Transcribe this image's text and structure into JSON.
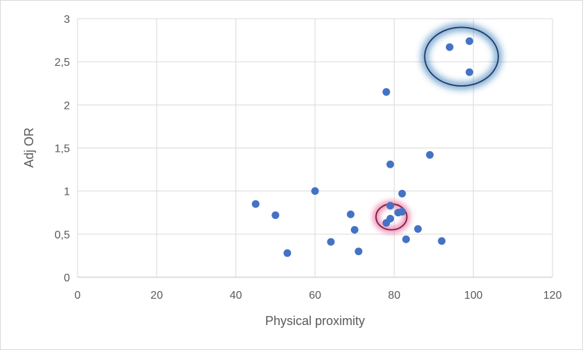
{
  "chart_data": {
    "type": "scatter",
    "title": "",
    "xlabel": "Physical proximity",
    "ylabel": "Adj OR",
    "xlim": [
      0,
      120
    ],
    "ylim": [
      0,
      3
    ],
    "x_ticks": [
      0,
      20,
      40,
      60,
      80,
      100,
      120
    ],
    "x_tick_labels": [
      "0",
      "20",
      "40",
      "60",
      "80",
      "100",
      "120"
    ],
    "y_ticks": [
      0,
      0.5,
      1,
      1.5,
      2,
      2.5,
      3
    ],
    "y_tick_labels": [
      "0",
      "0,5",
      "1",
      "1,5",
      "2",
      "2,5",
      "3"
    ],
    "grid": true,
    "legend": "none",
    "marker_color": "#4472C4",
    "points": [
      {
        "x": 45,
        "y": 0.85
      },
      {
        "x": 50,
        "y": 0.72
      },
      {
        "x": 53,
        "y": 0.28
      },
      {
        "x": 60,
        "y": 1.0
      },
      {
        "x": 64,
        "y": 0.41
      },
      {
        "x": 69,
        "y": 0.73
      },
      {
        "x": 70,
        "y": 0.55
      },
      {
        "x": 71,
        "y": 0.3
      },
      {
        "x": 78,
        "y": 2.15
      },
      {
        "x": 78,
        "y": 0.63
      },
      {
        "x": 79,
        "y": 1.31
      },
      {
        "x": 79,
        "y": 0.83
      },
      {
        "x": 79,
        "y": 0.68
      },
      {
        "x": 81,
        "y": 0.75
      },
      {
        "x": 82,
        "y": 0.97
      },
      {
        "x": 82,
        "y": 0.76
      },
      {
        "x": 83,
        "y": 0.44
      },
      {
        "x": 86,
        "y": 0.56
      },
      {
        "x": 89,
        "y": 1.42
      },
      {
        "x": 92,
        "y": 0.42
      },
      {
        "x": 94,
        "y": 2.67
      },
      {
        "x": 99,
        "y": 2.74
      },
      {
        "x": 99,
        "y": 2.38
      }
    ],
    "annotations": [
      {
        "shape": "ellipse",
        "center_x": 97,
        "center_y": 2.56,
        "radius_x": 9.3,
        "radius_y": 0.34,
        "stroke_color": "#1F3864",
        "glow_color": "#2E75B6"
      },
      {
        "shape": "ellipse",
        "center_x": 79.3,
        "center_y": 0.7,
        "radius_x": 3.9,
        "radius_y": 0.15,
        "stroke_color": "#7A1F3D",
        "glow_color": "#E8649A"
      }
    ]
  }
}
